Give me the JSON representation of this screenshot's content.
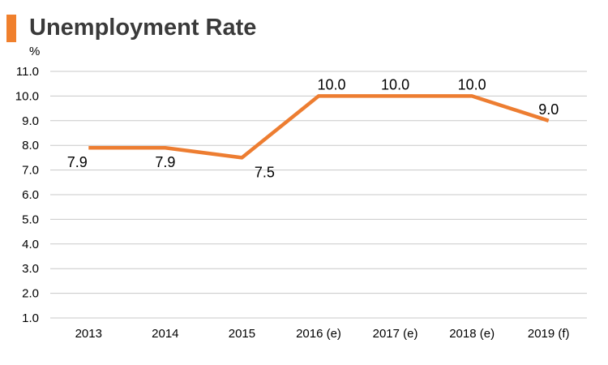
{
  "title": "Unemployment Rate",
  "colors": {
    "accent": "#f0802d",
    "line": "#ed7d31",
    "grid": "#c8c8c8"
  },
  "chart_data": {
    "type": "line",
    "title": "Unemployment Rate",
    "unit_label": "%",
    "xlabel": "",
    "ylabel": "",
    "categories": [
      "2013",
      "2014",
      "2015",
      "2016 (e)",
      "2017 (e)",
      "2018 (e)",
      "2019 (f)"
    ],
    "values": [
      7.9,
      7.9,
      7.5,
      10.0,
      10.0,
      10.0,
      9.0
    ],
    "data_labels": [
      "7.9",
      "7.9",
      "7.5",
      "10.0",
      "10.0",
      "10.0",
      "9.0"
    ],
    "y_ticks": [
      "1.0",
      "2.0",
      "3.0",
      "4.0",
      "5.0",
      "6.0",
      "7.0",
      "8.0",
      "9.0",
      "10.0",
      "11.0"
    ],
    "ylim": [
      1.0,
      11.0
    ],
    "grid": true,
    "legend": "none"
  }
}
